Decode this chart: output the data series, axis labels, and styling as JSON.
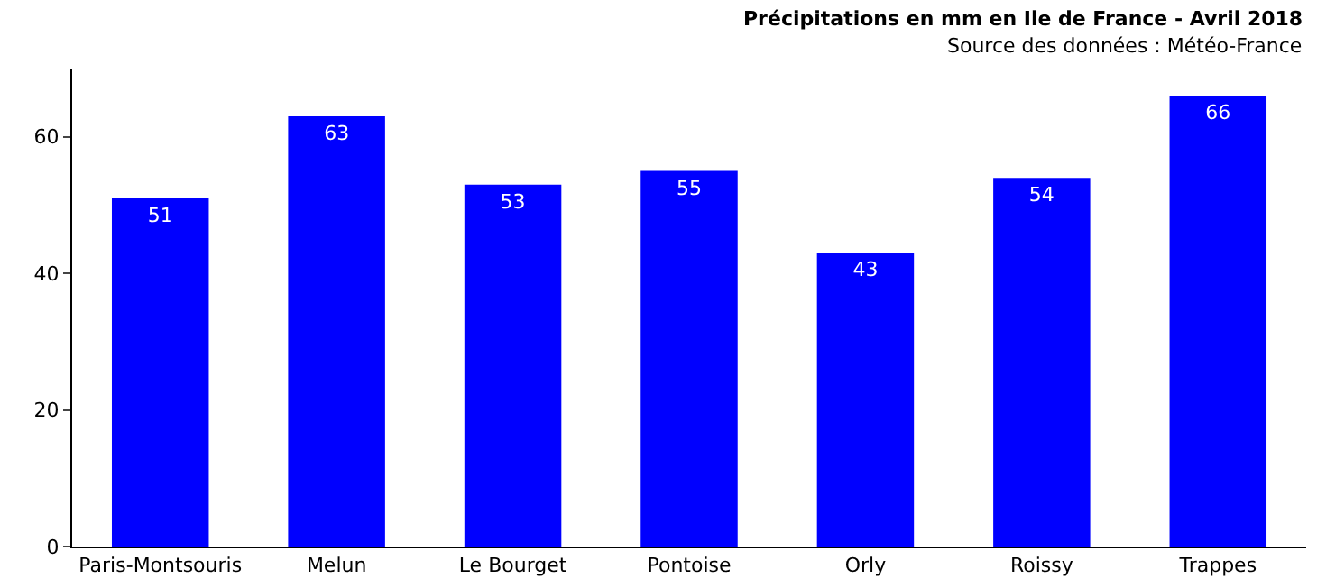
{
  "chart_data": {
    "type": "bar",
    "title": "Précipitations en mm en Ile de France - Avril 2018",
    "subtitle": "Source des données : Météo-France",
    "categories": [
      "Paris-Montsouris",
      "Melun",
      "Le Bourget",
      "Pontoise",
      "Orly",
      "Roissy",
      "Trappes"
    ],
    "values": [
      51,
      63,
      53,
      55,
      43,
      54,
      66
    ],
    "color": "#0000ff",
    "data_labels": true,
    "ylim": [
      0,
      70
    ],
    "yticks": [
      0,
      20,
      40,
      60
    ]
  }
}
